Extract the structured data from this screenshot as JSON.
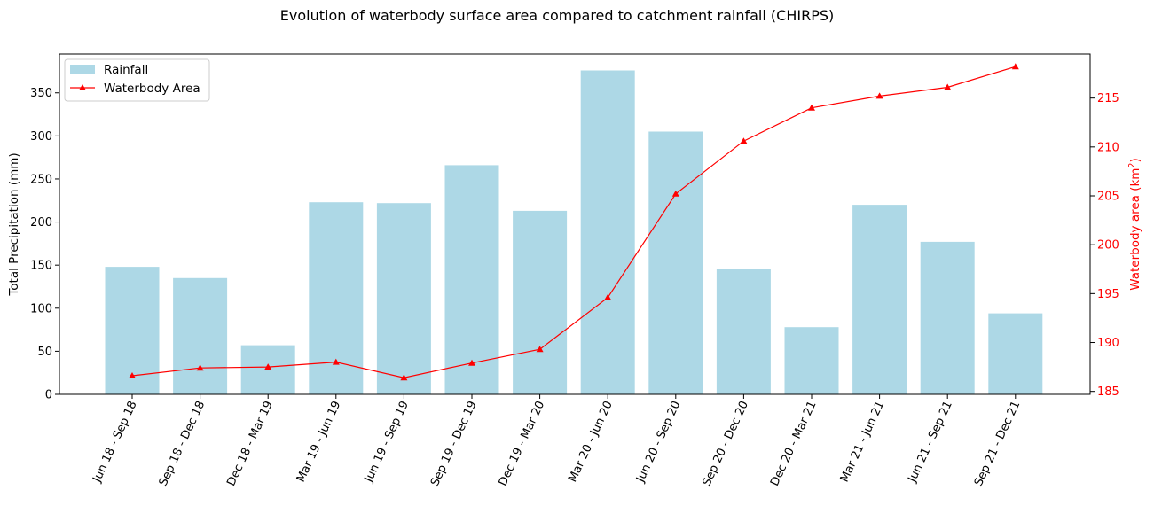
{
  "colors": {
    "bar": "#add8e6",
    "line": "#ff0000",
    "axis": "#000000",
    "right_axis_text": "#ff0000",
    "legend_border": "#cccccc"
  },
  "chart_data": {
    "type": "bar",
    "title": "Evolution of waterbody surface area compared to catchment rainfall (CHIRPS)",
    "xlabel": "",
    "categories": [
      "Jun 18 - Sep 18",
      "Sep 18 - Dec 18",
      "Dec 18 - Mar 19",
      "Mar 19 - Jun 19",
      "Jun 19 - Sep 19",
      "Sep 19 - Dec 19",
      "Dec 19 - Mar 20",
      "Mar 20 - Jun 20",
      "Jun 20 - Sep 20",
      "Sep 20 - Dec 20",
      "Dec 20 - Mar 21",
      "Mar 21 - Jun 21",
      "Jun 21 - Sep 21",
      "Sep 21 - Dec 21"
    ],
    "series": [
      {
        "name": "Rainfall",
        "type": "bar",
        "axis": "left",
        "values": [
          148,
          135,
          57,
          223,
          222,
          266,
          213,
          376,
          305,
          146,
          78,
          220,
          177,
          94
        ]
      },
      {
        "name": "Waterbody Area",
        "type": "line",
        "axis": "right",
        "marker": "triangle",
        "values": [
          186.6,
          187.4,
          187.5,
          188.0,
          186.4,
          187.9,
          189.3,
          194.6,
          205.2,
          210.6,
          214.0,
          215.2,
          216.1,
          218.2
        ]
      }
    ],
    "ylabel_left": "Total Precipitation (mm)",
    "ylabel_right_prefix": "Waterbody area (km",
    "ylabel_right_sup": "2",
    "ylabel_right_suffix": ")",
    "ylim_left": [
      0,
      395
    ],
    "yticks_left": [
      0,
      50,
      100,
      150,
      200,
      250,
      300,
      350
    ],
    "ylim_right": [
      184.7,
      219.5
    ],
    "yticks_right": [
      185,
      190,
      195,
      200,
      205,
      210,
      215
    ],
    "legend_position": "upper-left",
    "grid": false
  }
}
